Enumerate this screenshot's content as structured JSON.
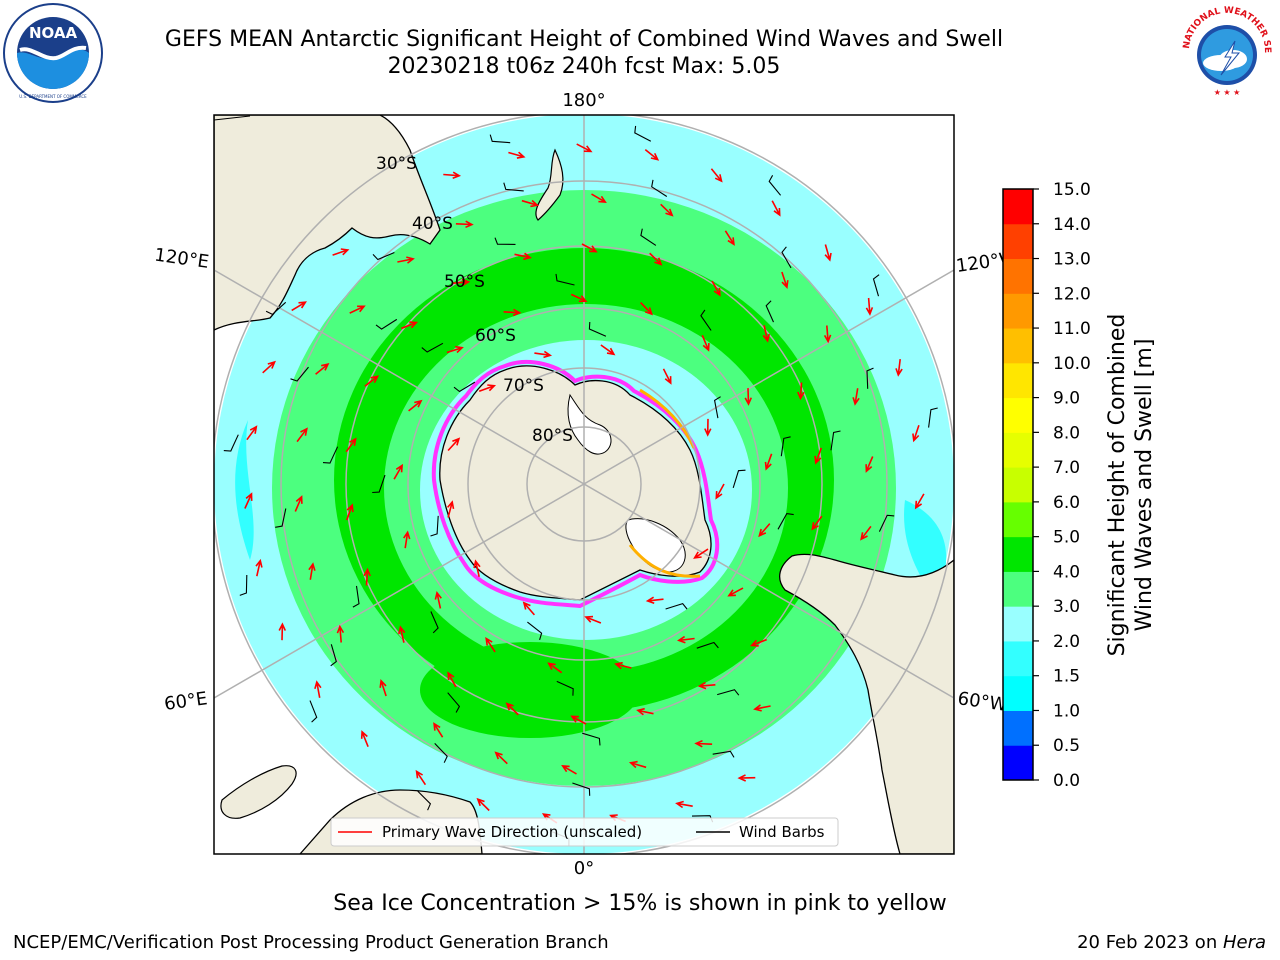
{
  "header": {
    "title_line1": "GEFS MEAN Antarctic Significant Height of Combined Wind Waves and Swell",
    "title_line2": "20230218 t06z 240h fcst   Max: 5.05"
  },
  "logos": {
    "left": {
      "name": "noaa-logo",
      "text": "NOAA",
      "ring_text": "NATIONAL OCEANIC AND ATMOSPHERIC ADMINISTRATION · U.S. DEPARTMENT OF COMMERCE"
    },
    "right": {
      "name": "nws-logo",
      "ring_text": "NATIONAL WEATHER SERVICE"
    }
  },
  "map": {
    "projection": "south-polar-stereographic",
    "longitude_labels": {
      "top": "180°",
      "bottom": "0°",
      "left_upper": "120°E",
      "left_lower": "60°E",
      "right_upper": "120°W",
      "right_lower": "60°W"
    },
    "latitude_labels": [
      "30°S",
      "40°S",
      "50°S",
      "60°S",
      "70°S",
      "80°S"
    ],
    "colors": {
      "land": "#efecdc",
      "coast": "#000000",
      "grid": "#b0b0b0",
      "wave_arrow": "#ff0000",
      "wind_barb": "#000000",
      "sea_ice": "#ff33ff",
      "sea_ice_edge": "#ffb000"
    }
  },
  "legend": {
    "primary_wave": "Primary Wave Direction (unscaled)",
    "wind_barbs": "Wind Barbs"
  },
  "chart_data": {
    "type": "heatmap",
    "variable": "Significant Height of Combined Wind Waves and Swell",
    "max_value": 5.05,
    "colorbar": {
      "label_line1": "Significant Height of Combined",
      "label_line2": "Wind Waves and Swell [m]",
      "range": [
        0.0,
        15.0
      ],
      "boundaries": [
        0.0,
        0.5,
        1.0,
        1.5,
        2.0,
        3.0,
        4.0,
        5.0,
        6.0,
        7.0,
        8.0,
        9.0,
        10.0,
        11.0,
        12.0,
        13.0,
        14.0,
        15.0
      ],
      "tick_labels": [
        "0.0",
        "0.5",
        "1.0",
        "1.5",
        "2.0",
        "3.0",
        "4.0",
        "5.0",
        "6.0",
        "7.0",
        "8.0",
        "9.0",
        "10.0",
        "11.0",
        "12.0",
        "13.0",
        "14.0",
        "15.0"
      ],
      "colors": [
        "#0000ff",
        "#0070ff",
        "#00ffff",
        "#33ffff",
        "#99ffff",
        "#4cff7f",
        "#00e600",
        "#66ff00",
        "#c8ff00",
        "#e6ff00",
        "#ffff00",
        "#ffe600",
        "#ffbf00",
        "#ff9900",
        "#ff7300",
        "#ff4000",
        "#ff0000"
      ]
    }
  },
  "caption": "Sea Ice Concentration > 15% is shown in pink to yellow",
  "footer": {
    "left": "NCEP/EMC/Verification Post Processing Product Generation Branch",
    "right_date": "20 Feb 2023 on ",
    "right_host": "Hera"
  }
}
